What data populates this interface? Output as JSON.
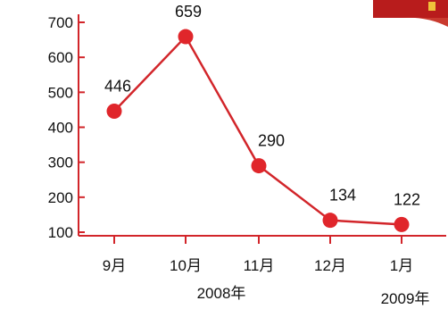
{
  "colors": {
    "line": "#d2252a",
    "marker": "#e0262b",
    "axis": "#d2252a",
    "text": "#111111",
    "corner_banner": "#b81c1c"
  },
  "chart_data": {
    "type": "line",
    "categories": [
      "9月",
      "10月",
      "11月",
      "12月",
      "1月"
    ],
    "values": [
      446,
      659,
      290,
      134,
      122
    ],
    "data_labels": [
      "446",
      "659",
      "290",
      "134",
      "122"
    ],
    "ylim": [
      0,
      700
    ],
    "yticks": [
      100,
      200,
      300,
      400,
      500,
      600,
      700
    ],
    "ytick_labels": [
      "100",
      "200",
      "300",
      "400",
      "500",
      "600",
      "700"
    ],
    "year_labels": [
      "2008年",
      "2009年"
    ],
    "grid": false
  }
}
